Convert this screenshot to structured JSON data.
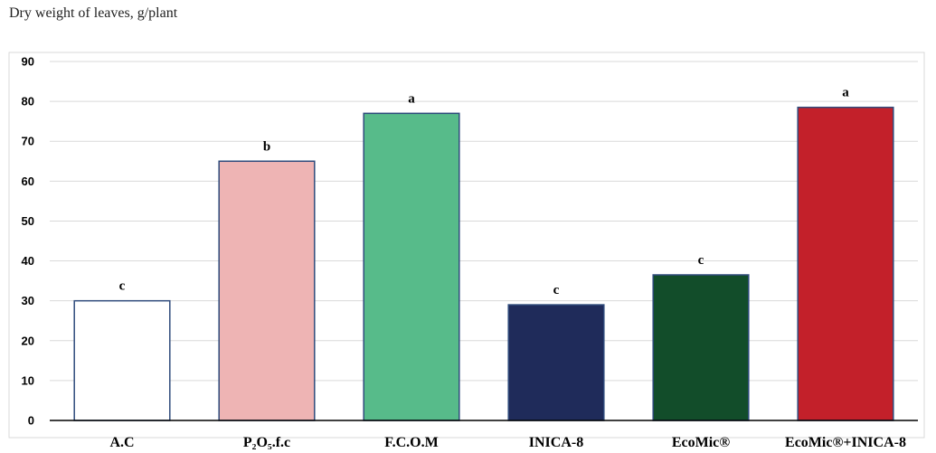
{
  "chart_data": {
    "type": "bar",
    "title": "Dry weight of leaves, g/plant",
    "xlabel": "",
    "ylabel": "",
    "ylim": [
      0,
      90
    ],
    "yticks": [
      0,
      10,
      20,
      30,
      40,
      50,
      60,
      70,
      80,
      90
    ],
    "grid": true,
    "categories": [
      "A.C",
      "P₂O₅.f.c",
      "F.C.O.M",
      "INICA-8",
      "EcoMic®",
      "EcoMic®+INICA-8"
    ],
    "values": [
      30,
      65,
      77,
      29,
      36.5,
      78.5
    ],
    "significance_letters": [
      "c",
      "b",
      "a",
      "c",
      "c",
      "a"
    ],
    "bar_colors": [
      "#ffffff",
      "#eeb4b4",
      "#57bb8a",
      "#1f2b5a",
      "#124d2a",
      "#c3202a"
    ],
    "bar_outline": "#2f4b7c"
  }
}
